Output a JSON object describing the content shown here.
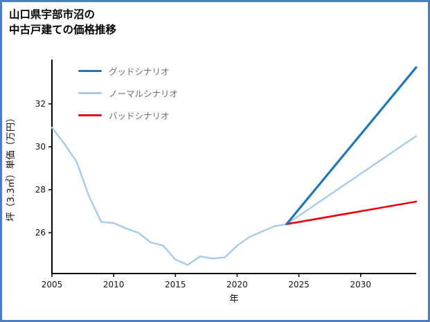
{
  "title": {
    "line1": "山口県宇部市沼の",
    "line2": "中古戸建ての価格推移"
  },
  "chart_data": {
    "type": "line",
    "title": "山口県宇部市沼の中古戸建ての価格推移",
    "xlabel": "年",
    "ylabel": "坪（3.3㎡）単価（万円）",
    "xlim": [
      2005,
      2034.5
    ],
    "ylim": [
      24.1,
      34.0
    ],
    "xticks": [
      2005,
      2010,
      2015,
      2020,
      2025,
      2030
    ],
    "yticks": [
      26,
      28,
      30,
      32
    ],
    "grid": false,
    "legend_position": "upper-left",
    "axis_color": "#000000",
    "frame_color": "#4a7ebf",
    "draw_order": [
      1,
      2,
      0
    ],
    "series": [
      {
        "name": "グッドシナリオ",
        "color": "#1f77b4",
        "width": 3.2,
        "x": [
          2024,
          2034.5
        ],
        "y": [
          26.4,
          33.7
        ]
      },
      {
        "name": "ノーマルシナリオ",
        "color": "#a6cbe9",
        "width": 2.4,
        "x": [
          2005,
          2006,
          2007,
          2008,
          2009,
          2010,
          2011,
          2012,
          2013,
          2014,
          2015,
          2016,
          2017,
          2018,
          2019,
          2020,
          2021,
          2022,
          2023,
          2024,
          2034.5
        ],
        "y": [
          30.9,
          30.15,
          29.3,
          27.7,
          26.5,
          26.45,
          26.2,
          26.0,
          25.55,
          25.4,
          24.75,
          24.5,
          24.9,
          24.8,
          24.85,
          25.4,
          25.8,
          26.05,
          26.3,
          26.4,
          30.5
        ]
      },
      {
        "name": "バッドシナリオ",
        "color": "#e8000b",
        "width": 2.6,
        "x": [
          2024,
          2034.5
        ],
        "y": [
          26.4,
          27.45
        ]
      }
    ]
  }
}
